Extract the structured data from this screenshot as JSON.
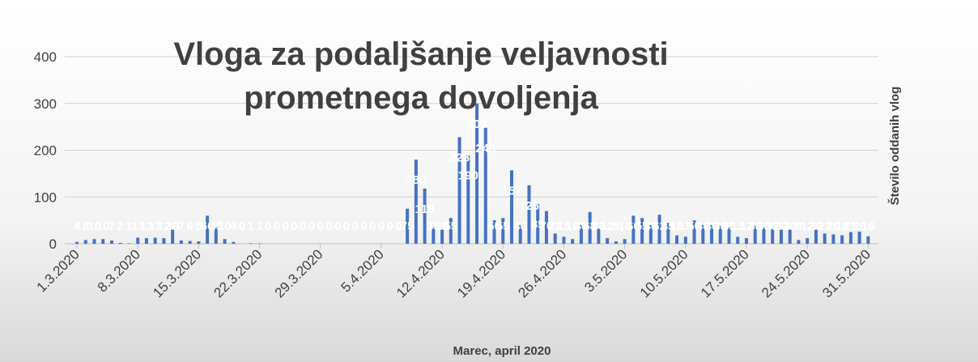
{
  "chart_data": {
    "type": "bar",
    "title": "Vloga za podaljšanje veljavnosti prometnega dovoljenja",
    "x_label": "Marec, april 2020",
    "y_label": "Število oddanih vlog",
    "categories": [
      "1.3.2020",
      null,
      null,
      null,
      null,
      null,
      null,
      "8.3.2020",
      null,
      null,
      null,
      null,
      null,
      null,
      "15.3.2020",
      null,
      null,
      null,
      null,
      null,
      null,
      "22.3.2020",
      null,
      null,
      null,
      null,
      null,
      null,
      "29.3.2020",
      null,
      null,
      null,
      null,
      null,
      null,
      "5.4.2020",
      null,
      null,
      null,
      null,
      null,
      null,
      "12.4.2020",
      null,
      null,
      null,
      null,
      null,
      null,
      "19.4.2020",
      null,
      null,
      null,
      null,
      null,
      null,
      "26.4.2020",
      null,
      null,
      null,
      null,
      null,
      null,
      "3.5.2020",
      null,
      null,
      null,
      null,
      null,
      null,
      "10.5.2020",
      null,
      null,
      null,
      null,
      null,
      null,
      "17.5.2020",
      null,
      null,
      null,
      null,
      null,
      null,
      "24.5.2020",
      null,
      null,
      null,
      null,
      null,
      null,
      "31.5.2020"
    ],
    "values": [
      4,
      8,
      10,
      10,
      7,
      2,
      1,
      13,
      12,
      13,
      12,
      30,
      7,
      6,
      5,
      60,
      35,
      10,
      4,
      0,
      1,
      1,
      0,
      0,
      0,
      0,
      0,
      0,
      0,
      0,
      0,
      0,
      0,
      0,
      0,
      0,
      0,
      0,
      75,
      180,
      118,
      35,
      30,
      55,
      228,
      190,
      300,
      248,
      50,
      55,
      157,
      40,
      125,
      85,
      70,
      22,
      15,
      10,
      40,
      68,
      33,
      12,
      5,
      10,
      60,
      55,
      40,
      62,
      45,
      18,
      15,
      50,
      40,
      40,
      38,
      35,
      15,
      12,
      38,
      35,
      32,
      30,
      30,
      8,
      12,
      30,
      22,
      20,
      18,
      25,
      26,
      16
    ],
    "color": "#4472c4",
    "ylim": [
      0,
      400
    ],
    "yticks": [
      0,
      100,
      200,
      300,
      400
    ],
    "grid": true
  }
}
